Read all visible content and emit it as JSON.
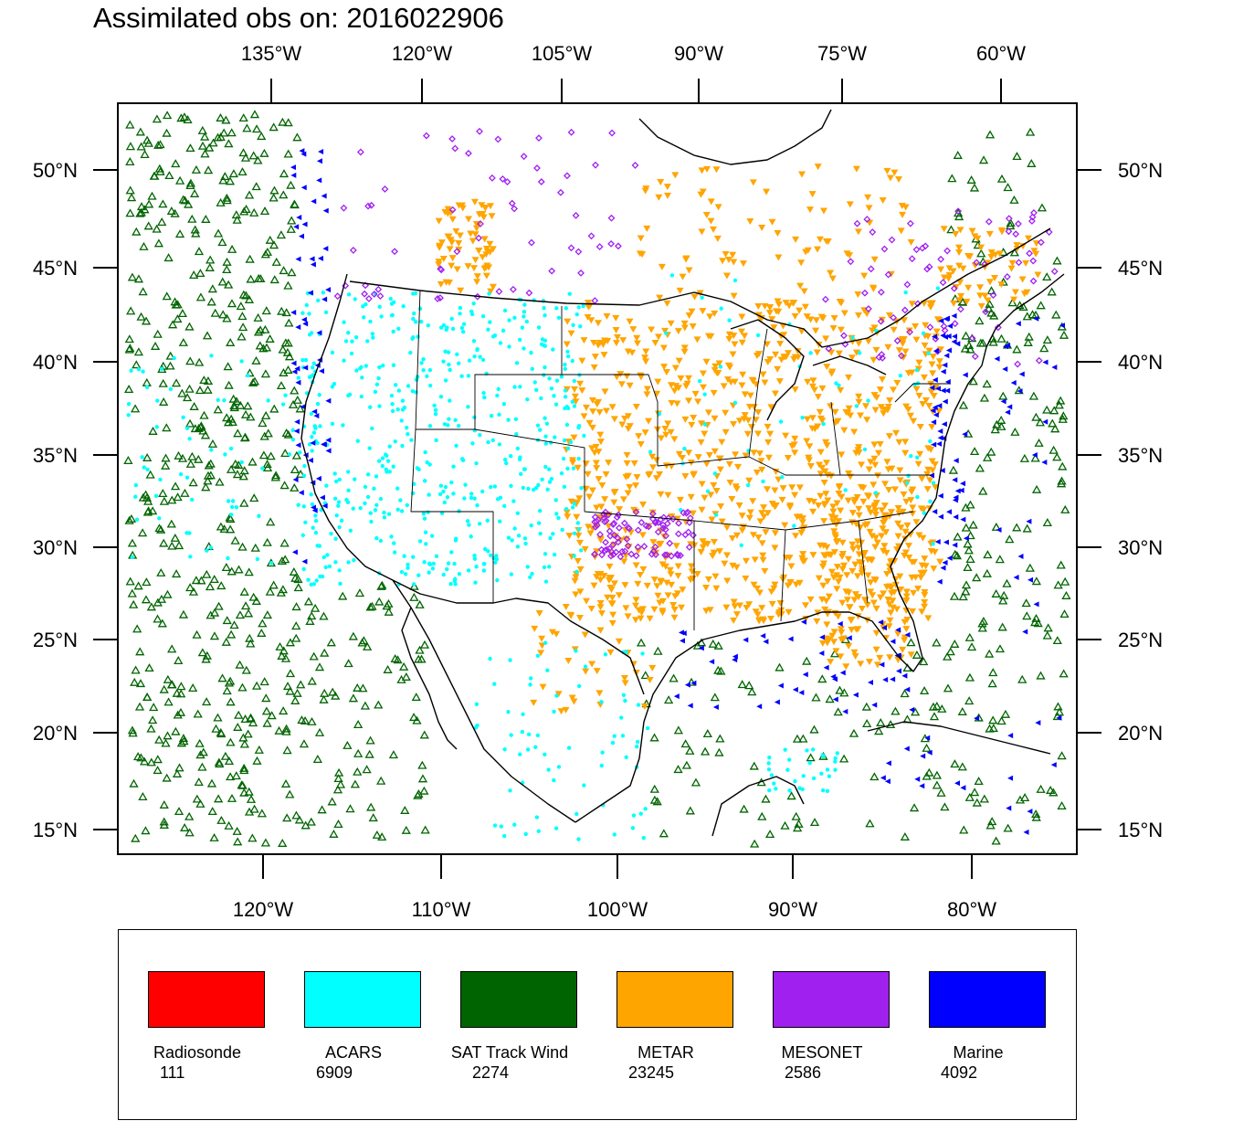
{
  "title": "Assimilated obs on: 2016022906",
  "top_lon_labels": [
    "135°W",
    "120°W",
    "105°W",
    "90°W",
    "75°W",
    "60°W"
  ],
  "bottom_lon_labels": [
    "120°W",
    "110°W",
    "100°W",
    "90°W",
    "80°W"
  ],
  "lat_labels": [
    "50°N",
    "45°N",
    "40°N",
    "35°N",
    "30°N",
    "25°N",
    "20°N",
    "15°N"
  ],
  "legend": [
    {
      "name": "Radiosonde",
      "count": "111",
      "color": "#ff0000"
    },
    {
      "name": "ACARS",
      "count": "6909",
      "color": "#00ffff"
    },
    {
      "name": "SAT Track Wind",
      "count": "2274",
      "color": "#006400"
    },
    {
      "name": "METAR",
      "count": "23245",
      "color": "#ffa500"
    },
    {
      "name": "MESONET",
      "count": "2586",
      "color": "#a020f0"
    },
    {
      "name": "Marine",
      "count": "4092",
      "color": "#0000ff"
    }
  ],
  "colors": {
    "acars": "#00ffff",
    "sat_track_wind": "#006400",
    "metar": "#ffa500",
    "mesonet": "#a020f0",
    "marine": "#0000ff",
    "coastline": "#000000"
  }
}
